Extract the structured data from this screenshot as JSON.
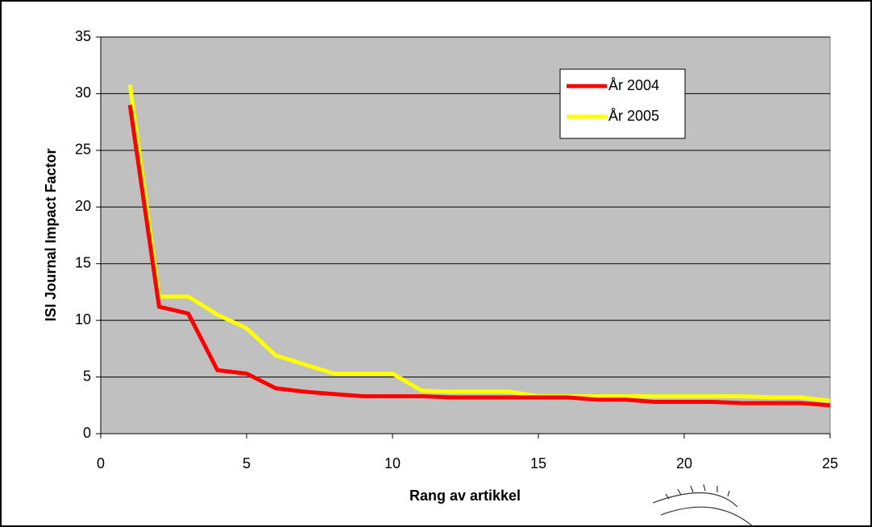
{
  "chart_data": {
    "type": "line",
    "x_label": "Rang av artikkel",
    "y_label": "ISI Journal Impact Factor",
    "x": [
      1,
      2,
      3,
      4,
      5,
      6,
      7,
      8,
      9,
      10,
      11,
      12,
      13,
      14,
      15,
      16,
      17,
      18,
      19,
      20,
      21,
      22,
      23,
      24,
      25
    ],
    "series": [
      {
        "name": "År 2004",
        "color": "#ff0000",
        "values": [
          29,
          11.2,
          10.6,
          5.6,
          5.3,
          4.0,
          3.7,
          3.5,
          3.3,
          3.3,
          3.3,
          3.2,
          3.2,
          3.2,
          3.2,
          3.2,
          3.0,
          3.0,
          2.8,
          2.8,
          2.8,
          2.7,
          2.7,
          2.7,
          2.5
        ]
      },
      {
        "name": "År 2005",
        "color": "#ffff00",
        "values": [
          30.8,
          12.1,
          12.1,
          10.5,
          9.3,
          6.9,
          6.1,
          5.3,
          5.3,
          5.3,
          3.8,
          3.7,
          3.7,
          3.7,
          3.3,
          3.3,
          3.3,
          3.3,
          3.3,
          3.3,
          3.3,
          3.3,
          3.2,
          3.2,
          2.9
        ]
      }
    ],
    "xlim": [
      0,
      25
    ],
    "xticks": [
      0,
      5,
      10,
      15,
      20,
      25
    ],
    "ylim": [
      0,
      35
    ],
    "yticks": [
      0,
      5,
      10,
      15,
      20,
      25,
      30,
      35
    ],
    "grid": true,
    "legend": "top-right",
    "background": "#c0c0c0"
  }
}
